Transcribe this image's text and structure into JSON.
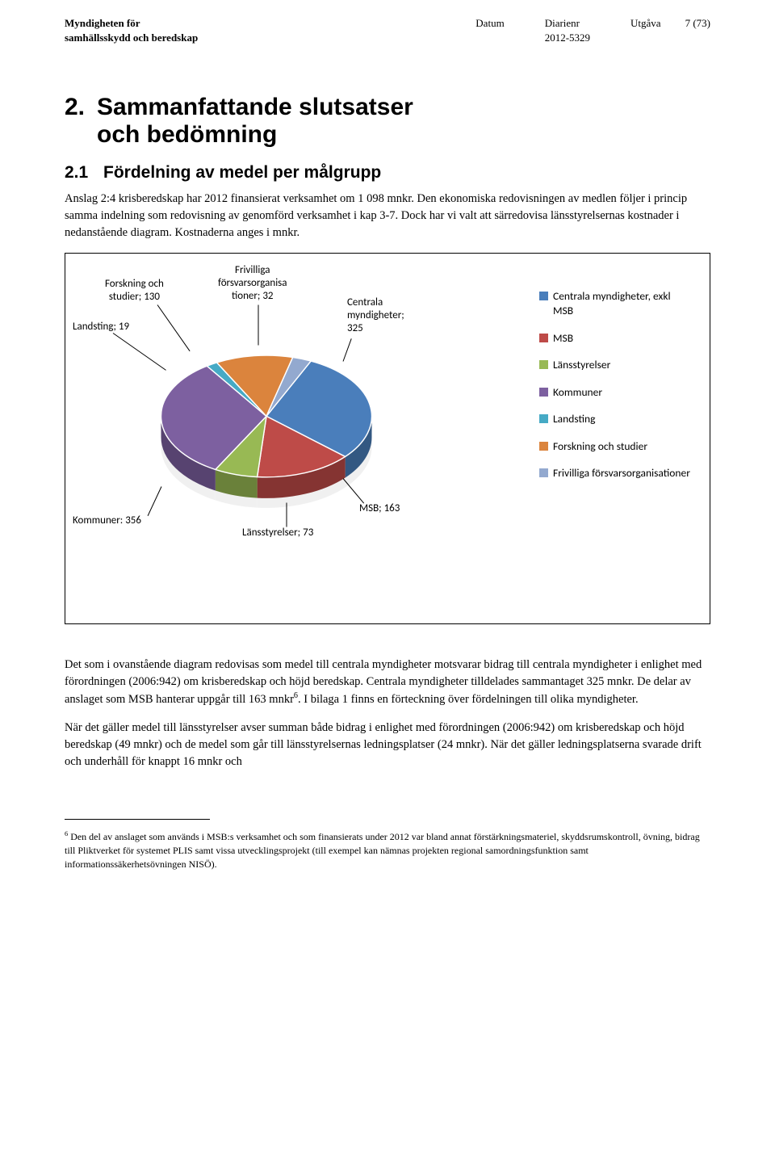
{
  "header": {
    "org_line1": "Myndigheten för",
    "org_line2": "samhällsskydd och beredskap",
    "datum_label": "Datum",
    "datum_value": "",
    "diarienr_label": "Diarienr",
    "diarienr_value": "2012-5329",
    "utgava_label": "Utgåva",
    "page_number": "7 (73)"
  },
  "section": {
    "number": "2.",
    "title_line1": "Sammanfattande slutsatser",
    "title_line2": "och bedömning"
  },
  "subsection": {
    "number": "2.1",
    "title": "Fördelning av medel per målgrupp"
  },
  "para1": "Anslag 2:4 krisberedskap har 2012 finansierat verksamhet om 1 098 mnkr. Den ekonomiska redovisningen av medlen följer i princip samma indelning som redovisning av genomförd verksamhet i kap 3-7. Dock har vi valt att särredovisa länsstyrelsernas kostnader i nedanstående diagram. Kostnaderna anges i mnkr.",
  "chart": {
    "type": "pie",
    "background_color": "#ffffff",
    "border_color": "#000000",
    "label_fontsize": 13,
    "legend_fontsize": 13.5,
    "slices": [
      {
        "key": "centrala",
        "label": "Centrala\nmyndigheter;\n325",
        "value": 325,
        "color": "#4a7ebb"
      },
      {
        "key": "msb",
        "label": "MSB; 163",
        "value": 163,
        "color": "#be4b48"
      },
      {
        "key": "lansstyrelser",
        "label": "Länsstyrelser; 73",
        "value": 73,
        "color": "#98b954"
      },
      {
        "key": "kommuner",
        "label": "Kommuner: 356",
        "value": 356,
        "color": "#7d60a0"
      },
      {
        "key": "landsting",
        "label": "Landsting; 19",
        "value": 19,
        "color": "#46aac5"
      },
      {
        "key": "forskning",
        "label": "Forskning och\nstudier; 130",
        "value": 130,
        "color": "#db843d"
      },
      {
        "key": "frivilliga",
        "label": "Frivilliga\nförsvarsorganisa\ntioner; 32",
        "value": 32,
        "color": "#93a9cf"
      }
    ],
    "legend": [
      {
        "label": "Centrala myndigheter, exkl MSB",
        "color": "#4a7ebb"
      },
      {
        "label": "MSB",
        "color": "#be4b48"
      },
      {
        "label": "Länsstyrelser",
        "color": "#98b954"
      },
      {
        "label": "Kommuner",
        "color": "#7d60a0"
      },
      {
        "label": "Landsting",
        "color": "#46aac5"
      },
      {
        "label": "Forskning och studier",
        "color": "#db843d"
      },
      {
        "label": "Frivilliga försvarsorganisationer",
        "color": "#93a9cf"
      }
    ],
    "start_angle": -65
  },
  "para2": "Det som i ovanstående diagram redovisas som medel till centrala myndigheter motsvarar bidrag till centrala myndigheter i enlighet med förordningen (2006:942) om krisberedskap och höjd beredskap. Centrala myndigheter tilldelades sammantaget 325 mnkr. De delar av anslaget som MSB hanterar uppgår till 163 mnkr",
  "para2_sup": "6",
  "para2_tail": ". I bilaga 1 finns en förteckning över fördelningen till olika myndigheter.",
  "para3": "När det gäller medel till länsstyrelser avser summan både bidrag i enlighet med förordningen (2006:942) om krisberedskap och höjd beredskap (49 mnkr) och de medel som går till länsstyrelsernas ledningsplatser (24 mnkr). När det gäller ledningsplatserna svarade drift och underhåll för knappt 16 mnkr och",
  "footnote": {
    "marker": "6",
    "text": " Den del av anslaget som används i MSB:s verksamhet och som finansierats under 2012 var bland annat förstärkningsmateriel, skyddsrumskontroll, övning, bidrag till Pliktverket för systemet PLIS samt vissa utvecklingsprojekt (till exempel kan nämnas projekten regional samordningsfunktion samt informationssäkerhetsövningen NISÖ)."
  }
}
